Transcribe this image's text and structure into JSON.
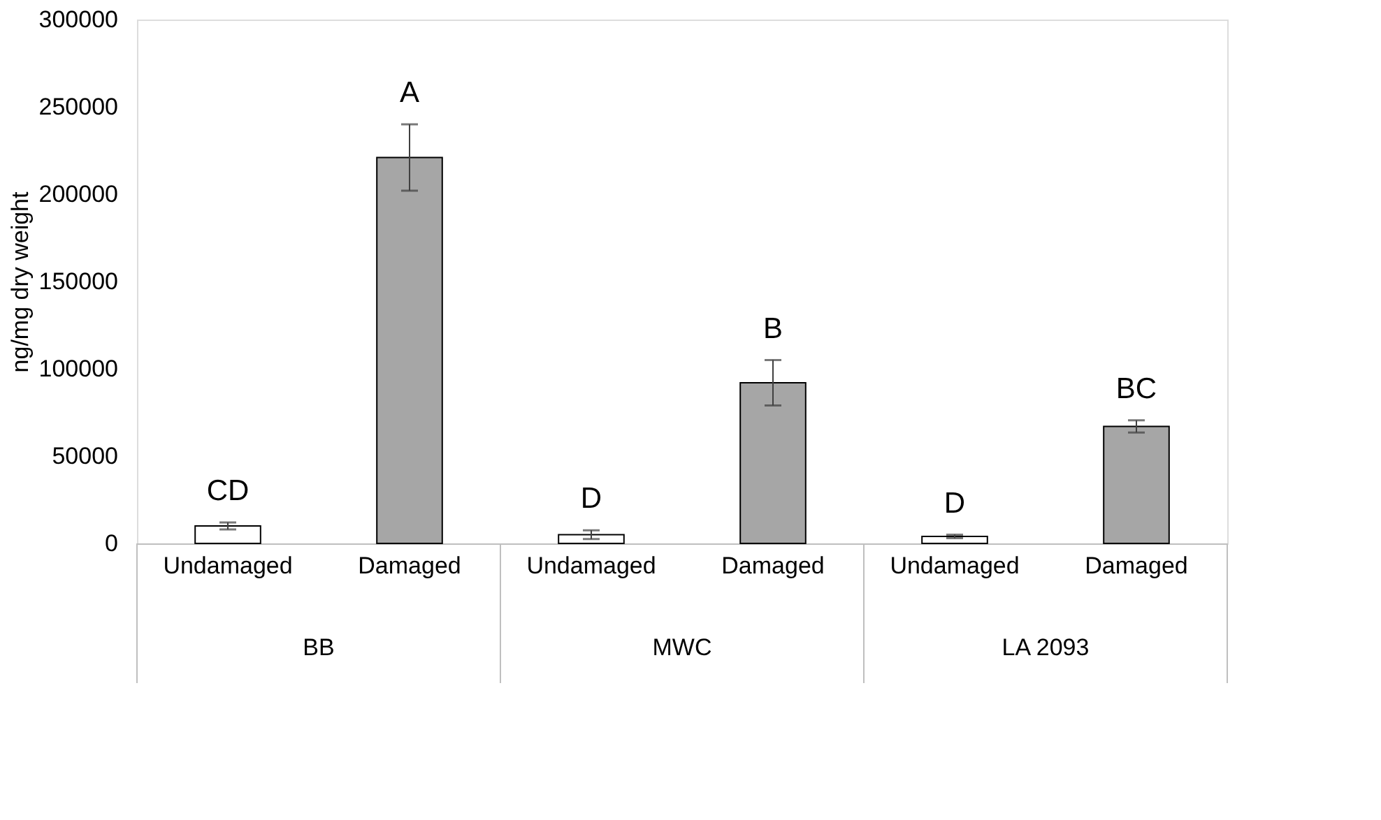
{
  "chart_data": {
    "type": "bar",
    "categories": [
      "Undamaged",
      "Damaged",
      "Undamaged",
      "Damaged",
      "Undamaged",
      "Damaged"
    ],
    "values": [
      10000,
      221000,
      5000,
      92000,
      4000,
      67000
    ],
    "errors": [
      2000,
      19000,
      2500,
      13000,
      1000,
      3500
    ],
    "colors": [
      "#ffffff",
      "#a6a6a6",
      "#ffffff",
      "#a6a6a6",
      "#ffffff",
      "#a6a6a6"
    ],
    "ylabel": "ng/mg dry weight",
    "ylim": [
      0,
      300000
    ],
    "yticks": [
      0,
      50000,
      100000,
      150000,
      200000,
      250000,
      300000
    ],
    "grid": false,
    "annotations": [
      "CD",
      "A",
      "D",
      "B",
      "D",
      "BC",
      "BB",
      "MWC",
      "LA 2093"
    ]
  }
}
